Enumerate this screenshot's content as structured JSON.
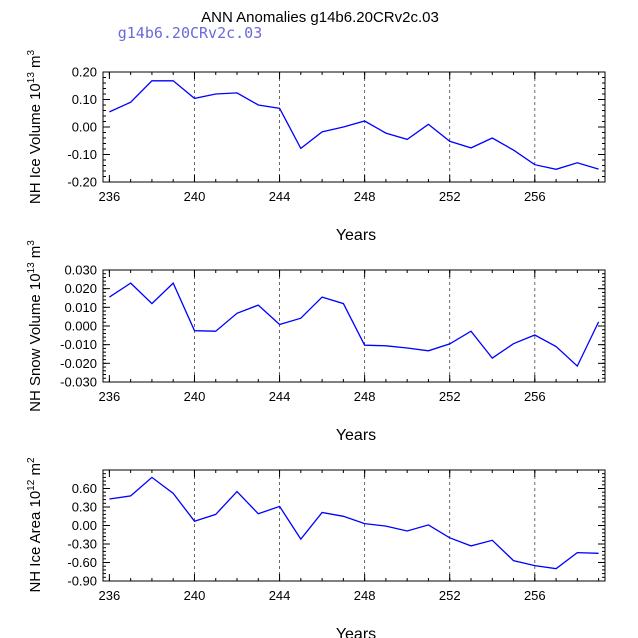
{
  "title": "ANN Anomalies g14b6.20CRv2c.03",
  "case_label": "g14b6.20CRv2c.03",
  "chart_data": [
    {
      "type": "line",
      "name": "ice-volume",
      "ylabel_main": "NH Ice Volume 10",
      "ylabel_exp": "13",
      "ylabel_unit": " m",
      "ylabel_unit_exp": "3",
      "xlabel": "Years",
      "xlim": [
        235.7,
        259.3
      ],
      "ylim": [
        -0.2,
        0.2
      ],
      "xticks": [
        236,
        240,
        244,
        248,
        252,
        256
      ],
      "xtick_labels": [
        "236",
        "240",
        "244",
        "248",
        "252",
        "256"
      ],
      "grid_x": [
        240,
        244,
        248,
        252,
        256
      ],
      "yticks": [
        0.2,
        0.1,
        0.0,
        -0.1,
        -0.2
      ],
      "ytick_labels": [
        "0.20",
        "0.10",
        "0.00",
        "-0.10",
        "-0.20"
      ],
      "series": [
        {
          "name": "NH Ice Volume",
          "color": "#0000ff",
          "x": [
            236,
            237,
            238,
            239,
            240,
            241,
            242,
            243,
            244,
            245,
            246,
            247,
            248,
            249,
            250,
            251,
            252,
            253,
            254,
            255,
            256,
            257,
            258,
            259
          ],
          "values": [
            0.055,
            0.09,
            0.168,
            0.168,
            0.104,
            0.12,
            0.124,
            0.08,
            0.068,
            -0.078,
            -0.018,
            0.0,
            0.022,
            -0.022,
            -0.045,
            0.01,
            -0.052,
            -0.076,
            -0.04,
            -0.084,
            -0.137,
            -0.154,
            -0.13,
            -0.153
          ]
        }
      ]
    },
    {
      "type": "line",
      "name": "snow-volume",
      "ylabel_main": "NH Snow Volume 10",
      "ylabel_exp": "13",
      "ylabel_unit": " m",
      "ylabel_unit_exp": "3",
      "xlabel": "Years",
      "xlim": [
        235.7,
        259.3
      ],
      "ylim": [
        -0.03,
        0.03
      ],
      "xticks": [
        236,
        240,
        244,
        248,
        252,
        256
      ],
      "xtick_labels": [
        "236",
        "240",
        "244",
        "248",
        "252",
        "256"
      ],
      "grid_x": [
        240,
        244,
        248,
        252,
        256
      ],
      "yticks": [
        0.03,
        0.02,
        0.01,
        0.0,
        -0.01,
        -0.02,
        -0.03
      ],
      "ytick_labels": [
        "0.030",
        "0.020",
        "0.010",
        "0.000",
        "-0.010",
        "-0.020",
        "-0.030"
      ],
      "series": [
        {
          "name": "NH Snow Volume",
          "color": "#0000ff",
          "x": [
            236,
            237,
            238,
            239,
            240,
            241,
            242,
            243,
            244,
            245,
            246,
            247,
            248,
            249,
            250,
            251,
            252,
            253,
            254,
            255,
            256,
            257,
            258,
            259
          ],
          "values": [
            0.0155,
            0.023,
            0.012,
            0.023,
            -0.0025,
            -0.0028,
            0.0068,
            0.0112,
            0.0008,
            0.0042,
            0.0155,
            0.012,
            -0.0103,
            -0.0106,
            -0.0118,
            -0.0133,
            -0.0096,
            -0.0028,
            -0.0172,
            -0.0095,
            -0.0048,
            -0.011,
            -0.0215,
            0.0022
          ]
        }
      ]
    },
    {
      "type": "line",
      "name": "ice-area",
      "ylabel_main": "NH Ice Area 10",
      "ylabel_exp": "12",
      "ylabel_unit": " m",
      "ylabel_unit_exp": "2",
      "xlabel": "Years",
      "xlim": [
        235.7,
        259.3
      ],
      "ylim": [
        -0.9,
        0.9
      ],
      "xticks": [
        236,
        240,
        244,
        248,
        252,
        256
      ],
      "xtick_labels": [
        "236",
        "240",
        "244",
        "248",
        "252",
        "256"
      ],
      "grid_x": [
        240,
        244,
        248,
        252,
        256
      ],
      "yticks": [
        0.6,
        0.3,
        0.0,
        -0.3,
        -0.6,
        -0.9
      ],
      "ytick_labels": [
        "0.60",
        "0.30",
        "0.00",
        "-0.30",
        "-0.60",
        "-0.90"
      ],
      "series": [
        {
          "name": "NH Ice Area",
          "color": "#0000ff",
          "x": [
            236,
            237,
            238,
            239,
            240,
            241,
            242,
            243,
            244,
            245,
            246,
            247,
            248,
            249,
            250,
            251,
            252,
            253,
            254,
            255,
            256,
            257,
            258,
            259
          ],
          "values": [
            0.43,
            0.48,
            0.78,
            0.52,
            0.07,
            0.18,
            0.55,
            0.19,
            0.31,
            -0.22,
            0.21,
            0.15,
            0.03,
            -0.01,
            -0.09,
            0.01,
            -0.2,
            -0.33,
            -0.24,
            -0.57,
            -0.65,
            -0.7,
            -0.44,
            -0.45
          ]
        }
      ]
    }
  ]
}
